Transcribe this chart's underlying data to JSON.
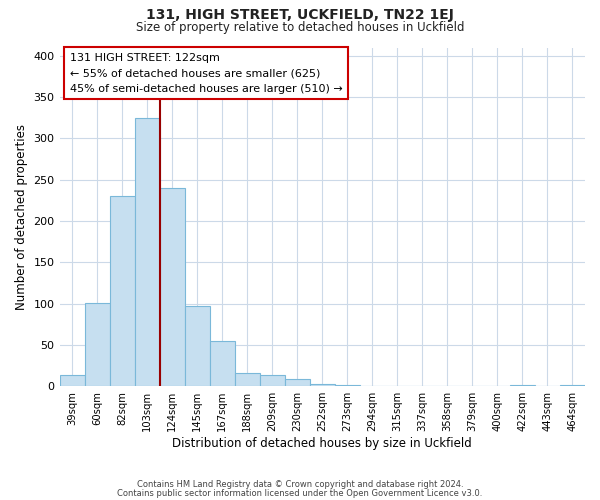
{
  "title": "131, HIGH STREET, UCKFIELD, TN22 1EJ",
  "subtitle": "Size of property relative to detached houses in Uckfield",
  "xlabel": "Distribution of detached houses by size in Uckfield",
  "ylabel": "Number of detached properties",
  "bar_labels": [
    "39sqm",
    "60sqm",
    "82sqm",
    "103sqm",
    "124sqm",
    "145sqm",
    "167sqm",
    "188sqm",
    "209sqm",
    "230sqm",
    "252sqm",
    "273sqm",
    "294sqm",
    "315sqm",
    "337sqm",
    "358sqm",
    "379sqm",
    "400sqm",
    "422sqm",
    "443sqm",
    "464sqm"
  ],
  "bar_values": [
    13,
    101,
    230,
    325,
    240,
    97,
    55,
    16,
    14,
    9,
    3,
    1,
    0,
    0,
    0,
    0,
    0,
    0,
    2,
    0,
    2
  ],
  "bar_color": "#c6dff0",
  "bar_edge_color": "#7ab8d9",
  "vline_color": "#990000",
  "annotation_title": "131 HIGH STREET: 122sqm",
  "annotation_line1": "← 55% of detached houses are smaller (625)",
  "annotation_line2": "45% of semi-detached houses are larger (510) →",
  "annotation_box_color": "#ffffff",
  "annotation_box_edge": "#cc0000",
  "ylim": [
    0,
    410
  ],
  "yticks": [
    0,
    50,
    100,
    150,
    200,
    250,
    300,
    350,
    400
  ],
  "footer1": "Contains HM Land Registry data © Crown copyright and database right 2024.",
  "footer2": "Contains public sector information licensed under the Open Government Licence v3.0.",
  "background_color": "#ffffff",
  "grid_color": "#ccd9e8"
}
